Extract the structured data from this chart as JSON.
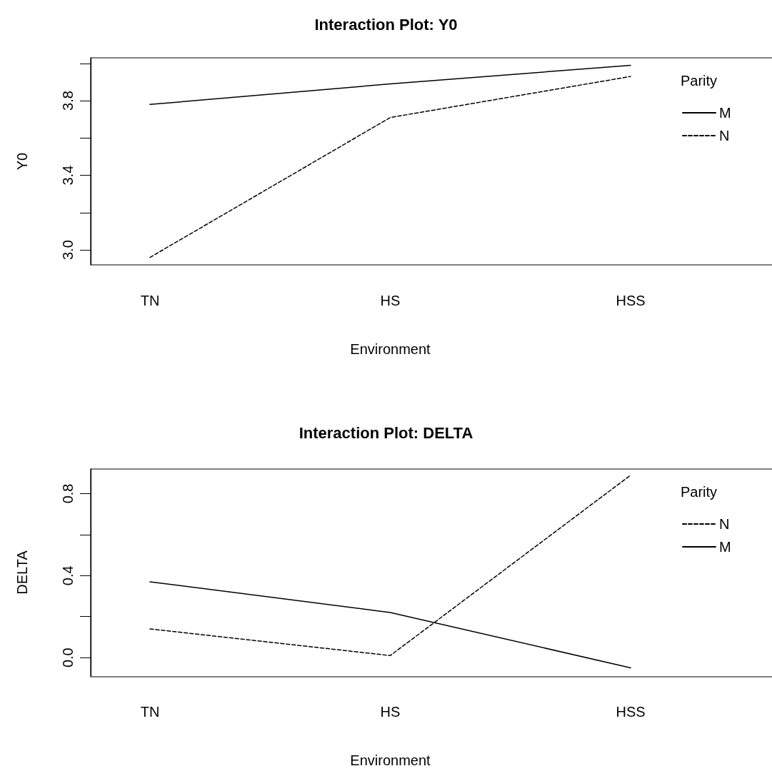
{
  "chart_data": [
    {
      "type": "line",
      "title": "Interaction Plot: Y0",
      "xlabel": "Environment",
      "ylabel": "Y0",
      "legend_title": "Parity",
      "categories": [
        "TN",
        "HS",
        "HSS"
      ],
      "series": [
        {
          "name": "M",
          "color": "#000000",
          "line_style": "solid",
          "values": [
            3.78,
            3.89,
            3.99
          ]
        },
        {
          "name": "N",
          "color": "#000000",
          "line_style": "dashed",
          "values": [
            2.96,
            3.71,
            3.93
          ]
        }
      ],
      "ylim": [
        2.92,
        4.03
      ],
      "yticks": [
        {
          "value": 3.0,
          "label": "3.0"
        },
        {
          "value": 3.2,
          "label": null
        },
        3.4,
        {
          "value": 3.6,
          "label": null
        },
        3.8,
        {
          "value": 4.0,
          "label": null
        }
      ],
      "grid": false,
      "legend": "top right",
      "marker": "none"
    },
    {
      "type": "line",
      "title": "Interaction Plot: DELTA",
      "xlabel": "Environment",
      "ylabel": "DELTA",
      "legend_title": "Parity",
      "categories": [
        "TN",
        "HS",
        "HSS"
      ],
      "series": [
        {
          "name": "N",
          "color": "#000000",
          "line_style": "dashed",
          "values": [
            0.14,
            0.01,
            0.89
          ]
        },
        {
          "name": "M",
          "color": "#000000",
          "line_style": "solid",
          "values": [
            0.37,
            0.22,
            -0.05
          ]
        }
      ],
      "ylim": [
        -0.09,
        0.92
      ],
      "yticks": [
        {
          "value": 0.0,
          "label": "0.0"
        },
        {
          "value": 0.2,
          "label": null
        },
        0.4,
        {
          "value": 0.6,
          "label": null
        },
        0.8
      ],
      "grid": false,
      "legend": "top right",
      "marker": "none"
    }
  ]
}
